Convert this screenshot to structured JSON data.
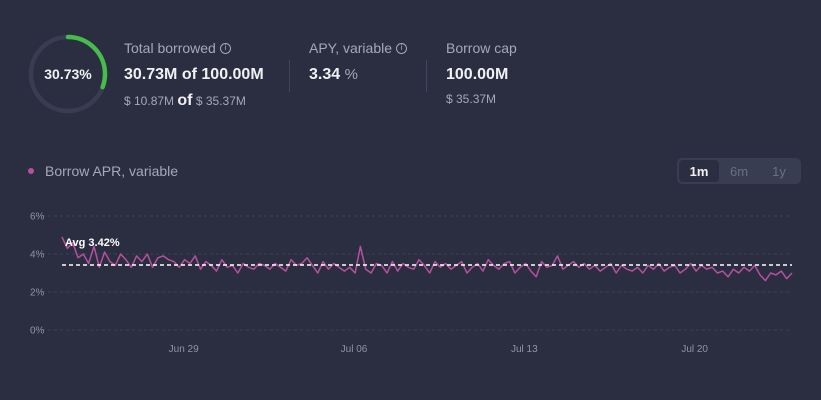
{
  "gauge": {
    "percent_label": "30.73%",
    "fraction": 0.3073,
    "track_color": "#383d51",
    "fill_color": "#46bc4b"
  },
  "total_borrowed": {
    "label": "Total borrowed",
    "amount": "30.73M",
    "of_word": "of",
    "cap": "100.00M",
    "usd_amount": "$ 10.87M",
    "usd_cap": "$ 35.37M"
  },
  "apy": {
    "label": "APY, variable",
    "value": "3.34",
    "unit": "%"
  },
  "borrow_cap": {
    "label": "Borrow cap",
    "value": "100.00M",
    "usd": "$ 35.37M"
  },
  "legend": {
    "label": "Borrow APR, variable",
    "color": "#b6509e"
  },
  "ranges": [
    {
      "label": "1m",
      "active": true
    },
    {
      "label": "6m",
      "active": false
    },
    {
      "label": "1y",
      "active": false
    }
  ],
  "info_icon": "info-circle-icon",
  "chart_data": {
    "type": "line",
    "x_range": [
      "2023-06-24",
      "2023-07-24"
    ],
    "ylim": [
      0,
      6
    ],
    "y_ticks": [
      "6%",
      "4%",
      "2%",
      "0%"
    ],
    "x_ticks": [
      {
        "label": "Jun 29",
        "date": "2023-06-29"
      },
      {
        "label": "Jul 06",
        "date": "2023-07-06"
      },
      {
        "label": "Jul 13",
        "date": "2023-07-13"
      },
      {
        "label": "Jul 20",
        "date": "2023-07-20"
      }
    ],
    "average": {
      "label": "Avg 3.42%",
      "value": 3.42
    },
    "series": [
      {
        "color": "#b6509e",
        "values": [
          4.9,
          4.3,
          4.6,
          3.8,
          4.0,
          3.5,
          4.4,
          3.3,
          4.1,
          3.6,
          3.4,
          4.0,
          3.7,
          3.3,
          3.9,
          3.6,
          4.0,
          3.3,
          3.8,
          3.9,
          3.7,
          3.6,
          3.3,
          3.7,
          3.5,
          3.9,
          3.2,
          3.6,
          3.4,
          3.1,
          3.7,
          3.3,
          3.4,
          3.0,
          3.5,
          3.3,
          3.2,
          3.5,
          3.4,
          3.2,
          3.5,
          3.3,
          3.1,
          3.7,
          3.4,
          3.5,
          3.8,
          3.4,
          3.0,
          3.6,
          3.2,
          3.5,
          3.3,
          3.1,
          3.3,
          3.0,
          4.4,
          3.2,
          3.0,
          3.5,
          3.4,
          3.0,
          3.6,
          3.1,
          3.5,
          3.3,
          3.2,
          3.7,
          3.4,
          3.0,
          3.6,
          3.3,
          3.5,
          3.2,
          3.4,
          3.6,
          3.0,
          3.3,
          3.5,
          3.1,
          3.7,
          3.4,
          3.2,
          3.5,
          3.6,
          3.0,
          3.3,
          3.5,
          3.1,
          2.8,
          3.6,
          3.3,
          3.4,
          3.9,
          3.2,
          3.4,
          3.6,
          3.3,
          3.5,
          3.2,
          3.4,
          3.1,
          3.3,
          3.5,
          3.0,
          3.4,
          3.2,
          3.1,
          3.3,
          3.0,
          3.4,
          3.2,
          3.5,
          3.1,
          3.3,
          3.4,
          3.0,
          3.2,
          3.5,
          3.1,
          3.4,
          3.2,
          3.3,
          3.0,
          3.1,
          2.8,
          3.2,
          3.0,
          3.3,
          3.1,
          3.4,
          2.9,
          2.6,
          3.0,
          2.9,
          3.1,
          2.7,
          3.0
        ]
      }
    ]
  }
}
